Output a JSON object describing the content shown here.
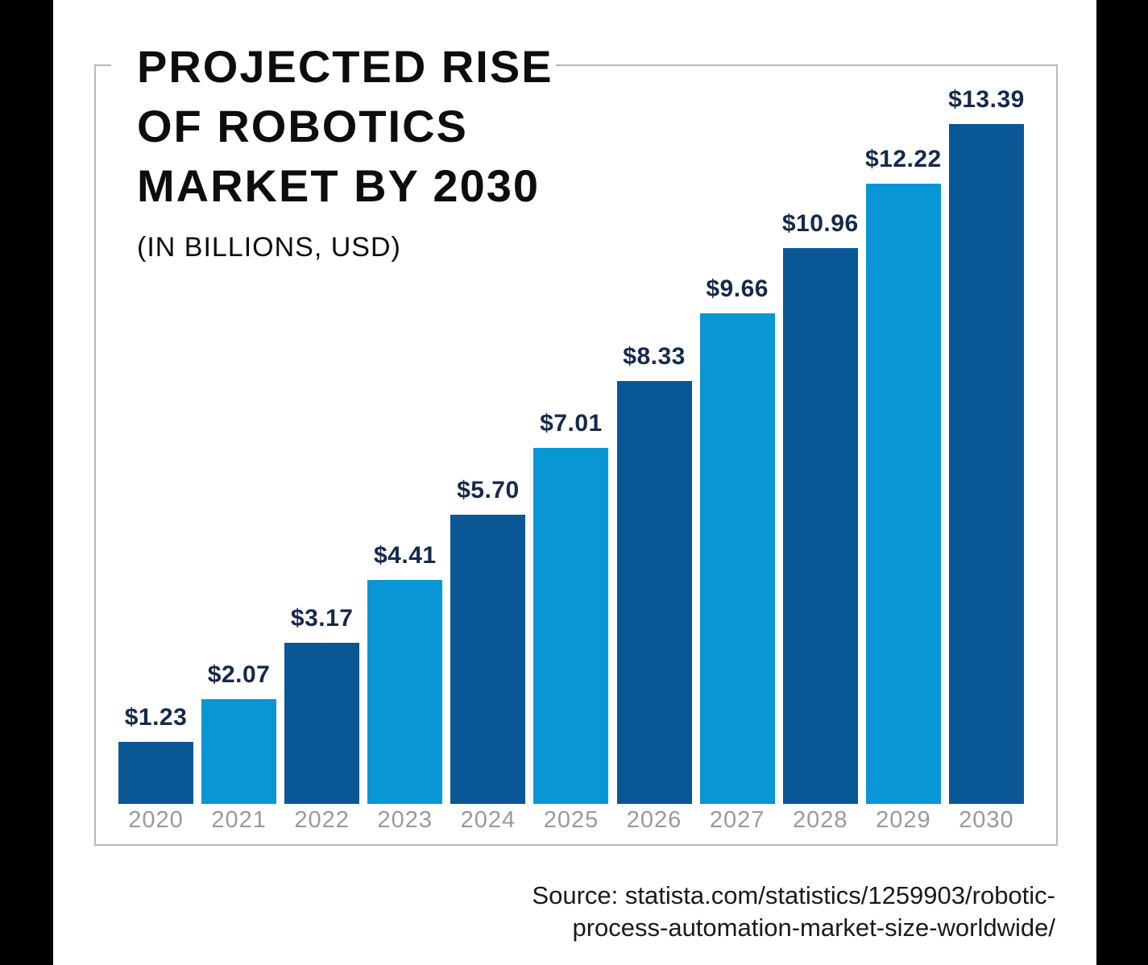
{
  "title": {
    "lines": [
      "PROJECTED RISE",
      "OF ROBOTICS",
      "MARKET BY 2030"
    ],
    "subtitle": "(IN BILLIONS, USD)"
  },
  "source": {
    "line1": "Source: statista.com/statistics/1259903/robotic-",
    "line2": "process-automation-market-size-worldwide/"
  },
  "colors": {
    "bar_dark_blue": "#0a5795",
    "bar_light_blue": "#0996d4",
    "value_label_navy": "#15294d",
    "year_label_gray": "#9a9a9a",
    "frame_border_gray": "#b9b9b9",
    "title_black": "#0d0d0d",
    "side_band_black": "#000000",
    "background_white": "#ffffff"
  },
  "chart_data": {
    "type": "bar",
    "title": "PROJECTED RISE OF ROBOTICS MARKET BY 2030",
    "subtitle": "(IN BILLIONS, USD)",
    "categories": [
      "2020",
      "2021",
      "2022",
      "2023",
      "2024",
      "2025",
      "2026",
      "2027",
      "2028",
      "2029",
      "2030"
    ],
    "values": [
      1.23,
      2.07,
      3.17,
      4.41,
      5.7,
      7.01,
      8.33,
      9.66,
      10.96,
      12.22,
      13.39
    ],
    "value_labels": [
      "$1.23",
      "$2.07",
      "$3.17",
      "$4.41",
      "$5.70",
      "$7.01",
      "$8.33",
      "$9.66",
      "$10.96",
      "$12.22",
      "$13.39"
    ],
    "xlabel": "",
    "ylabel": "",
    "ylim": [
      0,
      14
    ],
    "grid": false,
    "legend": false,
    "value_labels_position": "above-bars",
    "bar_color_pattern": "alternating: even-index bars #0a5795 (dark blue), odd-index bars #0996d4 (light blue)",
    "source": "Source: statista.com/statistics/1259903/robotic-process-automation-market-size-worldwide/"
  }
}
